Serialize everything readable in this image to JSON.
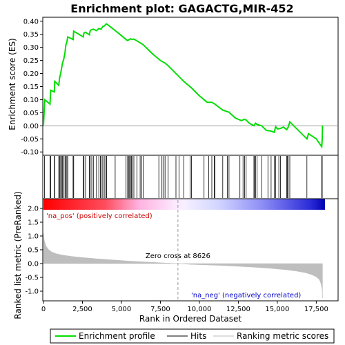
{
  "chart_data": {
    "type": "line",
    "title": "Enrichment plot: GAGACTG,MIR-452",
    "xlabel": "Rank in Ordered Dataset",
    "x_ticks": [
      0,
      2500,
      5000,
      7500,
      10000,
      12500,
      15000,
      17500
    ],
    "x_tick_labels": [
      "0",
      "2,500",
      "5,000",
      "7,500",
      "10,000",
      "12,500",
      "15,000",
      "17,500"
    ],
    "xlim": [
      0,
      18900
    ],
    "x_max_rank": 17900,
    "es_panel": {
      "ylabel": "Enrichment score (ES)",
      "ylim": [
        -0.11,
        0.41
      ],
      "y_ticks": [
        -0.1,
        -0.05,
        0.0,
        0.05,
        0.1,
        0.15,
        0.2,
        0.25,
        0.3,
        0.35,
        0.4
      ],
      "y_tick_labels": [
        "-0.10",
        "-0.05",
        "0.00",
        "0.05",
        "0.10",
        "0.15",
        "0.20",
        "0.25",
        "0.30",
        "0.35",
        "0.40"
      ],
      "line_color": "#00dd00",
      "series": [
        {
          "name": "Enrichment profile",
          "x": [
            0,
            60,
            80,
            420,
            460,
            700,
            720,
            980,
            1040,
            1100,
            1160,
            1220,
            1300,
            1380,
            1440,
            1500,
            1560,
            1900,
            1940,
            2550,
            2600,
            2700,
            2950,
            3000,
            3200,
            3400,
            3550,
            3700,
            3800,
            3900,
            4000,
            4050,
            4200,
            4800,
            5300,
            5400,
            5500,
            5600,
            5700,
            5800,
            6000,
            6400,
            7000,
            7500,
            7800,
            8000,
            8500,
            9000,
            9500,
            10000,
            10500,
            10800,
            11000,
            11500,
            11900,
            12300,
            12700,
            12900,
            13000,
            13200,
            13500,
            13600,
            13700,
            14000,
            14300,
            14600,
            14800,
            14900,
            15000,
            15200,
            15400,
            15600,
            15700,
            15800,
            16900,
            17000,
            17500,
            17850,
            17880,
            17900
          ],
          "y": [
            0.0,
            0.08,
            0.1,
            0.083,
            0.136,
            0.13,
            0.17,
            0.155,
            0.185,
            0.2,
            0.22,
            0.24,
            0.255,
            0.28,
            0.31,
            0.32,
            0.34,
            0.33,
            0.362,
            0.34,
            0.355,
            0.358,
            0.348,
            0.365,
            0.37,
            0.364,
            0.372,
            0.37,
            0.38,
            0.382,
            0.388,
            0.39,
            0.383,
            0.355,
            0.33,
            0.326,
            0.33,
            0.333,
            0.33,
            0.332,
            0.325,
            0.31,
            0.275,
            0.25,
            0.24,
            0.23,
            0.2,
            0.17,
            0.145,
            0.115,
            0.09,
            0.09,
            0.083,
            0.06,
            0.052,
            0.03,
            0.02,
            0.025,
            0.022,
            0.01,
            0.0,
            0.01,
            0.005,
            0.0,
            -0.018,
            -0.02,
            -0.025,
            -0.003,
            -0.012,
            -0.01,
            -0.005,
            -0.015,
            -0.005,
            0.015,
            -0.05,
            -0.03,
            -0.05,
            -0.08,
            -0.05,
            0.002
          ]
        }
      ]
    },
    "hits_panel": {
      "hit_positions": [
        60,
        420,
        460,
        700,
        720,
        980,
        1040,
        1100,
        1160,
        1220,
        1300,
        1380,
        1440,
        1500,
        1560,
        1900,
        1940,
        2550,
        2600,
        2700,
        2950,
        3000,
        3100,
        3200,
        3400,
        3550,
        3650,
        3700,
        3800,
        3900,
        4000,
        4050,
        4600,
        5300,
        5400,
        5450,
        5500,
        5600,
        5650,
        5700,
        5800,
        6000,
        6200,
        6300,
        6400,
        7400,
        7600,
        7700,
        7800,
        8000,
        8500,
        8700,
        9000,
        9400,
        9500,
        10300,
        10600,
        10800,
        10950,
        11000,
        11500,
        11800,
        11900,
        12600,
        12800,
        12900,
        13000,
        13500,
        13550,
        13600,
        13700,
        14000,
        14400,
        14600,
        14800,
        14900,
        15100,
        15200,
        15600,
        15650,
        15700,
        15800,
        16900,
        17850,
        17880
      ]
    },
    "metric_panel": {
      "ylabel": "Ranked list metric (PreRanked)",
      "ylim": [
        -1.3,
        2.3
      ],
      "y_ticks": [
        -1.0,
        -0.5,
        0.0,
        0.5,
        1.0,
        1.5,
        2.0
      ],
      "y_tick_labels": [
        "-1.0",
        "-0.5",
        "0.0",
        "0.5",
        "1.0",
        "1.5",
        "2.0"
      ],
      "fill_color": "#bebebe",
      "series": [
        {
          "name": "Ranking metric scores",
          "x": [
            0,
            50,
            150,
            300,
            500,
            800,
            1200,
            1800,
            2500,
            3500,
            4500,
            5500,
            6500,
            7500,
            8626,
            9500,
            10500,
            11500,
            12500,
            13500,
            14500,
            15500,
            16200,
            16800,
            17200,
            17500,
            17700,
            17800,
            17880,
            17900
          ],
          "y": [
            1.1,
            0.85,
            0.65,
            0.52,
            0.43,
            0.36,
            0.31,
            0.26,
            0.22,
            0.17,
            0.13,
            0.09,
            0.06,
            0.03,
            0.0,
            -0.03,
            -0.05,
            -0.07,
            -0.1,
            -0.13,
            -0.17,
            -0.22,
            -0.27,
            -0.33,
            -0.4,
            -0.48,
            -0.58,
            -0.72,
            -0.95,
            -1.25
          ]
        }
      ],
      "zero_cross_label": "Zero cross at 8626",
      "zero_cross_rank": 8626,
      "pos_label": "'na_pos' (positively correlated)",
      "neg_label": "'na_neg' (negatively correlated)"
    },
    "legend": {
      "placement": "bottom",
      "entries": [
        {
          "label": "Enrichment profile",
          "color": "#00dd00"
        },
        {
          "label": "Hits",
          "color": "#000000"
        },
        {
          "label": "Ranking metric scores",
          "color": "#bebebe"
        }
      ]
    }
  }
}
